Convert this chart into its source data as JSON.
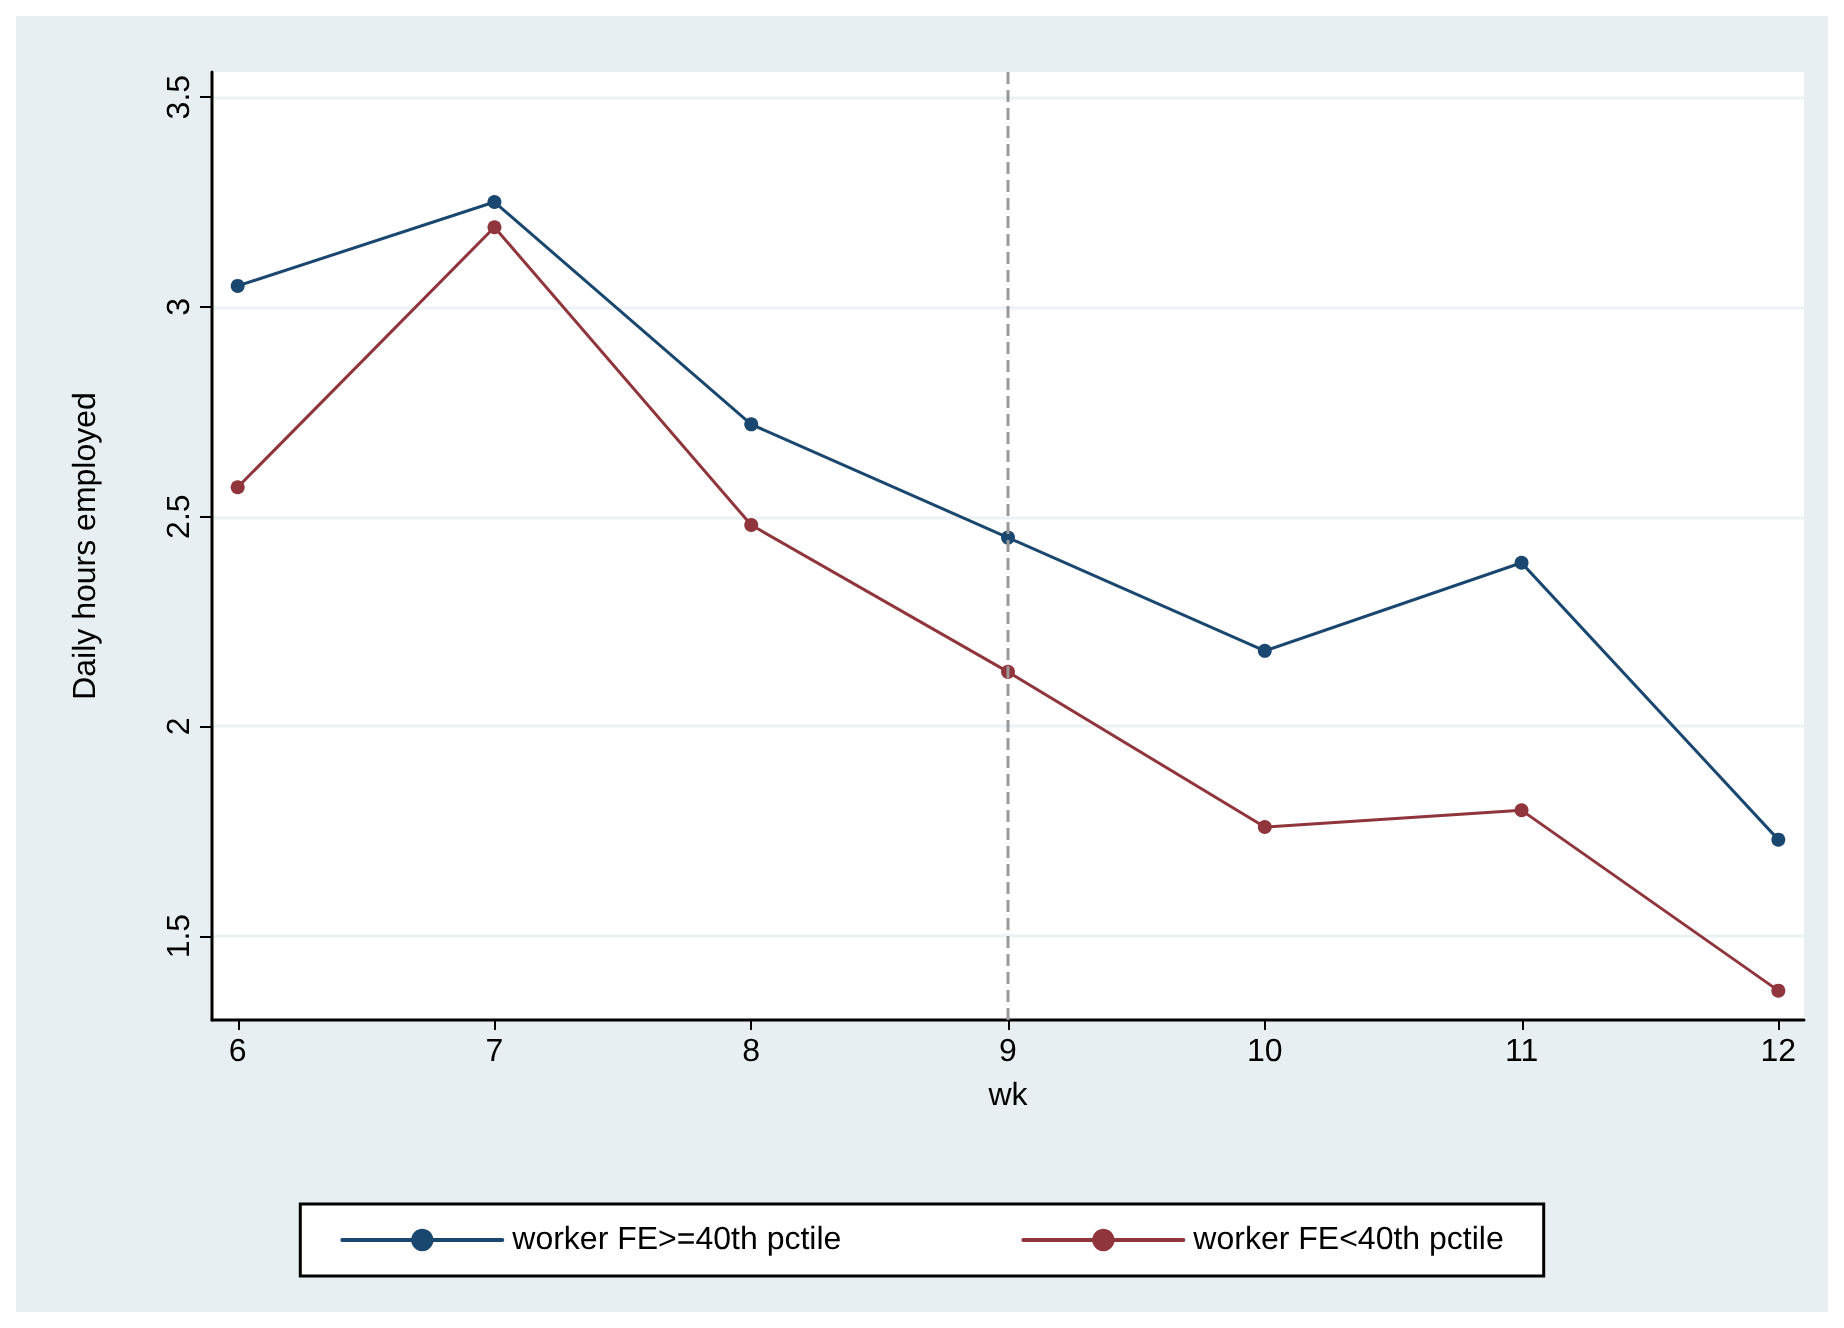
{
  "chart_data": {
    "type": "line",
    "xlabel": "wk",
    "ylabel": "Daily hours employed",
    "x": [
      6,
      7,
      8,
      9,
      10,
      11,
      12
    ],
    "series": [
      {
        "name": "worker FE>=40th pctile",
        "color": "#1a476f",
        "values": [
          3.05,
          3.25,
          2.72,
          2.45,
          2.18,
          2.39,
          1.73
        ]
      },
      {
        "name": "worker FE<40th pctile",
        "color": "#90353b",
        "values": [
          2.57,
          3.19,
          2.48,
          2.13,
          1.76,
          1.8,
          1.37
        ]
      }
    ],
    "xlim": [
      5.9,
      12.1
    ],
    "xticks": [
      6,
      7,
      8,
      9,
      10,
      11,
      12
    ],
    "ylim": [
      1.3,
      3.56
    ],
    "yticks": [
      1.5,
      2,
      2.5,
      3,
      3.5
    ],
    "ref_lines": [
      {
        "axis": "x",
        "value": 9,
        "color": "#999999",
        "line_style": "dashed"
      }
    ],
    "grid": "y",
    "legend": "bottom",
    "marker": "circle",
    "line_style": "solid"
  }
}
